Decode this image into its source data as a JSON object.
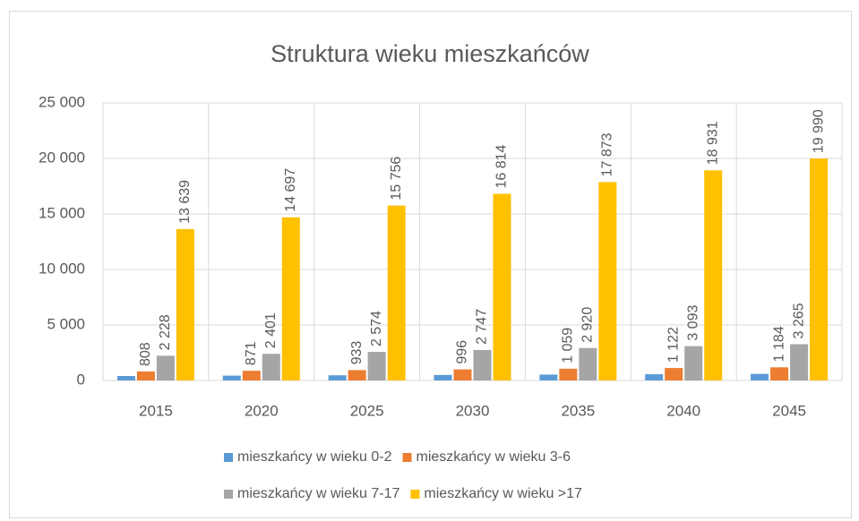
{
  "chart_data": {
    "type": "bar",
    "title": "Struktura wieku mieszkańców",
    "categories": [
      "2015",
      "2020",
      "2025",
      "2030",
      "2035",
      "2040",
      "2045"
    ],
    "series": [
      {
        "name": "mieszkańcy w wieku 0-2",
        "color": "#5b9bd5",
        "values": [
          404,
          436,
          467,
          498,
          530,
          561,
          592
        ]
      },
      {
        "name": "mieszkańcy w wieku 3-6",
        "color": "#ed7d31",
        "values": [
          808,
          871,
          933,
          996,
          1059,
          1122,
          1184
        ],
        "value_labels": [
          "808",
          "871",
          "933",
          "996",
          "1 059",
          "1 122",
          "1 184"
        ]
      },
      {
        "name": "mieszkańcy w wieku 7-17",
        "color": "#a5a5a5",
        "values": [
          2228,
          2401,
          2574,
          2747,
          2920,
          3093,
          3265
        ],
        "value_labels": [
          "2 228",
          "2 401",
          "2 574",
          "2 747",
          "2 920",
          "3 093",
          "3 265"
        ]
      },
      {
        "name": "mieszkańcy w wieku >17",
        "color": "#ffc000",
        "values": [
          13639,
          14697,
          15756,
          16814,
          17873,
          18931,
          19990
        ],
        "value_labels": [
          "13 639",
          "14 697",
          "15 756",
          "16 814",
          "17 873",
          "18 931",
          "19 990"
        ]
      }
    ],
    "ylim": [
      0,
      25000
    ],
    "yticks": [
      0,
      {
        "value": 5000,
        "label": "5 000"
      },
      {
        "value": 10000,
        "label": "10 000"
      },
      {
        "value": 15000,
        "label": "15 000"
      },
      {
        "value": 20000,
        "label": "20 000"
      },
      {
        "value": 25000,
        "label": "25 000"
      }
    ],
    "grid": true,
    "legend": "bottom"
  }
}
